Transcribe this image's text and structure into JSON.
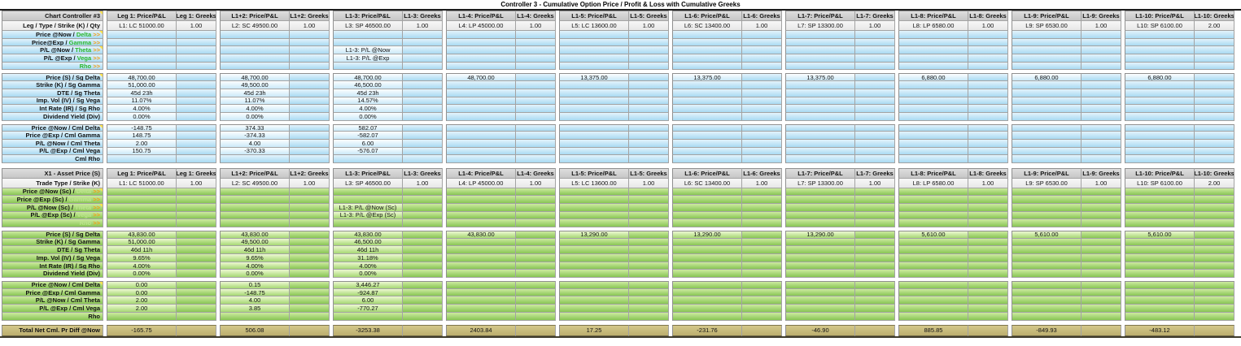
{
  "title": "Controller 3 - Cumulative Option Price / Profit & Loss with Cumulative Greeks",
  "groups": [
    {
      "price_header": "Leg 1: Price/P&L",
      "greeks_header": "Leg 1: Greeks",
      "leg": "L1: LC 51000.00",
      "qty": "1.00"
    },
    {
      "price_header": "L1+2: Price/P&L",
      "greeks_header": "L1+2: Greeks",
      "leg": "L2: SC 49500.00",
      "qty": "1.00"
    },
    {
      "price_header": "L1-3: Price/P&L",
      "greeks_header": "L1-3: Greeks",
      "leg": "L3: SP 46500.00",
      "qty": "1.00"
    },
    {
      "price_header": "L1-4: Price/P&L",
      "greeks_header": "L1-4: Greeks",
      "leg": "L4: LP 45000.00",
      "qty": "1.00"
    },
    {
      "price_header": "L1-5: Price/P&L",
      "greeks_header": "L1-5: Greeks",
      "leg": "L5: LC 13600.00",
      "qty": "1.00"
    },
    {
      "price_header": "L1-6: Price/P&L",
      "greeks_header": "L1-6: Greeks",
      "leg": "L6: SC 13400.00",
      "qty": "1.00"
    },
    {
      "price_header": "L1-7: Price/P&L",
      "greeks_header": "L1-7: Greeks",
      "leg": "L7: SP 13300.00",
      "qty": "1.00"
    },
    {
      "price_header": "L1-8: Price/P&L",
      "greeks_header": "L1-8: Greeks",
      "leg": "L8: LP 6580.00",
      "qty": "1.00"
    },
    {
      "price_header": "L1-9: Price/P&L",
      "greeks_header": "L1-9: Greeks",
      "leg": "L9: SP 6530.00",
      "qty": "1.00"
    },
    {
      "price_header": "L1-10: Price/P&L",
      "greeks_header": "L1-10: Greeks",
      "leg": "L10: SP 6100.00",
      "qty": "2.00"
    }
  ],
  "sections": [
    {
      "theme": "blue",
      "corner": "Chart Controller #3",
      "corner_note": true,
      "leg_row_label": "Leg / Type / Strike (K) / Qty",
      "link_rows": [
        {
          "label": "Price @Now /",
          "greek": "Delta",
          "note": true,
          "cells": [
            "",
            "",
            "",
            "",
            "",
            "",
            "",
            "",
            "",
            ""
          ]
        },
        {
          "label": "Price@Exp /",
          "greek": "Gamma",
          "cells": [
            "",
            "",
            "",
            "",
            "",
            "",
            "",
            "",
            "",
            ""
          ]
        },
        {
          "label": "P/L @Now /",
          "greek": "Theta",
          "note": true,
          "cells": [
            "",
            "",
            "L1-3: P/L @Now",
            "",
            "",
            "",
            "",
            "",
            "",
            ""
          ]
        },
        {
          "label": "P/L @Exp /",
          "greek": "Vega",
          "cells": [
            "",
            "",
            "L1-3: P/L @Exp",
            "",
            "",
            "",
            "",
            "",
            "",
            ""
          ]
        },
        {
          "label": "",
          "greek": "Rho",
          "cells": [
            "",
            "",
            "",
            "",
            "",
            "",
            "",
            "",
            "",
            ""
          ]
        }
      ],
      "param_rows": [
        {
          "label": "Price (S) / Sg Delta",
          "note": true,
          "cells": [
            "48,700.00",
            "48,700.00",
            "48,700.00",
            "48,700.00",
            "13,375.00",
            "13,375.00",
            "13,375.00",
            "6,880.00",
            "6,880.00",
            "6,880.00"
          ]
        },
        {
          "label": "Strike (K) / Sg Gamma",
          "cells": [
            "51,000.00",
            "49,500.00",
            "46,500.00",
            "",
            "",
            "",
            "",
            "",
            "",
            ""
          ]
        },
        {
          "label": "DTE / Sg Theta",
          "cells": [
            "45d 23h",
            "45d 23h",
            "45d 23h",
            "",
            "",
            "",
            "",
            "",
            "",
            ""
          ]
        },
        {
          "label": "Imp. Vol (IV) / Sg Vega",
          "cells": [
            "11.07%",
            "11.07%",
            "14.57%",
            "",
            "",
            "",
            "",
            "",
            "",
            ""
          ]
        },
        {
          "label": "Int Rate (IR) / Sg Rho",
          "cells": [
            "4.00%",
            "4.00%",
            "4.00%",
            "",
            "",
            "",
            "",
            "",
            "",
            ""
          ]
        },
        {
          "label": "Dividend Yield (Div)",
          "cells": [
            "0.00%",
            "0.00%",
            "0.00%",
            "",
            "",
            "",
            "",
            "",
            "",
            ""
          ]
        }
      ],
      "cml_rows": [
        {
          "label": "Price @Now / Cml Delta",
          "note": true,
          "cells": [
            "-148.75",
            "374.33",
            "582.07",
            "",
            "",
            "",
            "",
            "",
            "",
            ""
          ]
        },
        {
          "label": "Price @Exp / Cml Gamma",
          "cells": [
            "148.75",
            "-374.33",
            "-582.07",
            "",
            "",
            "",
            "",
            "",
            "",
            ""
          ]
        },
        {
          "label": "P/L @Now / Cml Theta",
          "cells": [
            "2.00",
            "4.00",
            "6.00",
            "",
            "",
            "",
            "",
            "",
            "",
            ""
          ]
        },
        {
          "label": "P/L @Exp / Cml Vega",
          "cells": [
            "150.75",
            "-370.33",
            "-576.07",
            "",
            "",
            "",
            "",
            "",
            "",
            ""
          ]
        },
        {
          "label": "Cml Rho",
          "cells": [
            "",
            "",
            "",
            "",
            "",
            "",
            "",
            "",
            "",
            ""
          ]
        }
      ]
    },
    {
      "theme": "green",
      "corner": "X1 - Asset Price (S)",
      "leg_row_label": "Trade Type / Strike (K)",
      "link_rows": [
        {
          "label": "Price @Now (Sc) /",
          "greek": "Delta",
          "note": true,
          "cells": [
            "",
            "",
            "",
            "",
            "",
            "",
            "",
            "",
            "",
            ""
          ]
        },
        {
          "label": "Price @Exp (Sc) /",
          "greek": "Gamma",
          "cells": [
            "",
            "",
            "",
            "",
            "",
            "",
            "",
            "",
            "",
            ""
          ]
        },
        {
          "label": "P/L @Now (Sc) /",
          "greek": "Theta",
          "note": true,
          "cells": [
            "",
            "",
            "L1-3: P/L @Now (Sc)",
            "",
            "",
            "",
            "",
            "",
            "",
            ""
          ]
        },
        {
          "label": "P/L @Exp (Sc) /",
          "greek": "Vega",
          "cells": [
            "",
            "",
            "L1-3: P/L @Exp (Sc)",
            "",
            "",
            "",
            "",
            "",
            "",
            ""
          ]
        },
        {
          "label": "",
          "greek": "Rho",
          "cells": [
            "",
            "",
            "",
            "",
            "",
            "",
            "",
            "",
            "",
            ""
          ]
        }
      ],
      "param_rows": [
        {
          "label": "Price (S) / Sg Delta",
          "cells": [
            "43,830.00",
            "43,830.00",
            "43,830.00",
            "43,830.00",
            "13,290.00",
            "13,290.00",
            "13,290.00",
            "5,610.00",
            "5,610.00",
            "5,610.00"
          ]
        },
        {
          "label": "Strike (K) / Sg Gamma",
          "cells": [
            "51,000.00",
            "49,500.00",
            "46,500.00",
            "",
            "",
            "",
            "",
            "",
            "",
            ""
          ]
        },
        {
          "label": "DTE / Sg Theta",
          "cells": [
            "46d 11h",
            "46d 11h",
            "46d 11h",
            "",
            "",
            "",
            "",
            "",
            "",
            ""
          ]
        },
        {
          "label": "Imp. Vol (IV) / Sg Vega",
          "cells": [
            "9.65%",
            "9.65%",
            "31.18%",
            "",
            "",
            "",
            "",
            "",
            "",
            ""
          ]
        },
        {
          "label": "Int Rate (IR) / Sg Rho",
          "cells": [
            "4.00%",
            "4.00%",
            "4.00%",
            "",
            "",
            "",
            "",
            "",
            "",
            ""
          ]
        },
        {
          "label": "Dividend Yield (Div)",
          "cells": [
            "0.00%",
            "0.00%",
            "0.00%",
            "",
            "",
            "",
            "",
            "",
            "",
            ""
          ]
        }
      ],
      "cml_rows": [
        {
          "label": "Price @Now / Cml Delta",
          "note": true,
          "cells": [
            "0.00",
            "0.15",
            "3,446.27",
            "",
            "",
            "",
            "",
            "",
            "",
            ""
          ]
        },
        {
          "label": "Price @Exp / Cml Gamma",
          "cells": [
            "0.00",
            "-148.75",
            "-924.87",
            "",
            "",
            "",
            "",
            "",
            "",
            ""
          ]
        },
        {
          "label": "P/L @Now / Cml Theta",
          "cells": [
            "2.00",
            "4.00",
            "6.00",
            "",
            "",
            "",
            "",
            "",
            "",
            ""
          ]
        },
        {
          "label": "P/L @Exp / Cml Vega",
          "cells": [
            "2.00",
            "3.85",
            "-770.27",
            "",
            "",
            "",
            "",
            "",
            "",
            ""
          ]
        },
        {
          "label": "Rho",
          "cells": [
            "",
            "",
            "",
            "",
            "",
            "",
            "",
            "",
            "",
            ""
          ]
        }
      ]
    }
  ],
  "total_row": {
    "label": "Total Net Cml. Pr Diff @Now",
    "values": [
      "-165.75",
      "506.08",
      "-3253.38",
      "2403.84",
      "17.25",
      "-231.76",
      "-46.90",
      "885.85",
      "-849.93",
      "-483.12"
    ]
  },
  "colors": {
    "blue_accent": "#a9daf2",
    "green_accent": "#88c654",
    "greek_word_blue_section": "#2db82d",
    "greek_word_green_section": "#bce48d",
    "arrow_orange": "#f49f15",
    "total_tan": "#c9bd7e",
    "note_marker_yellow": "#ffe24a",
    "header_gray": "#cecece"
  }
}
